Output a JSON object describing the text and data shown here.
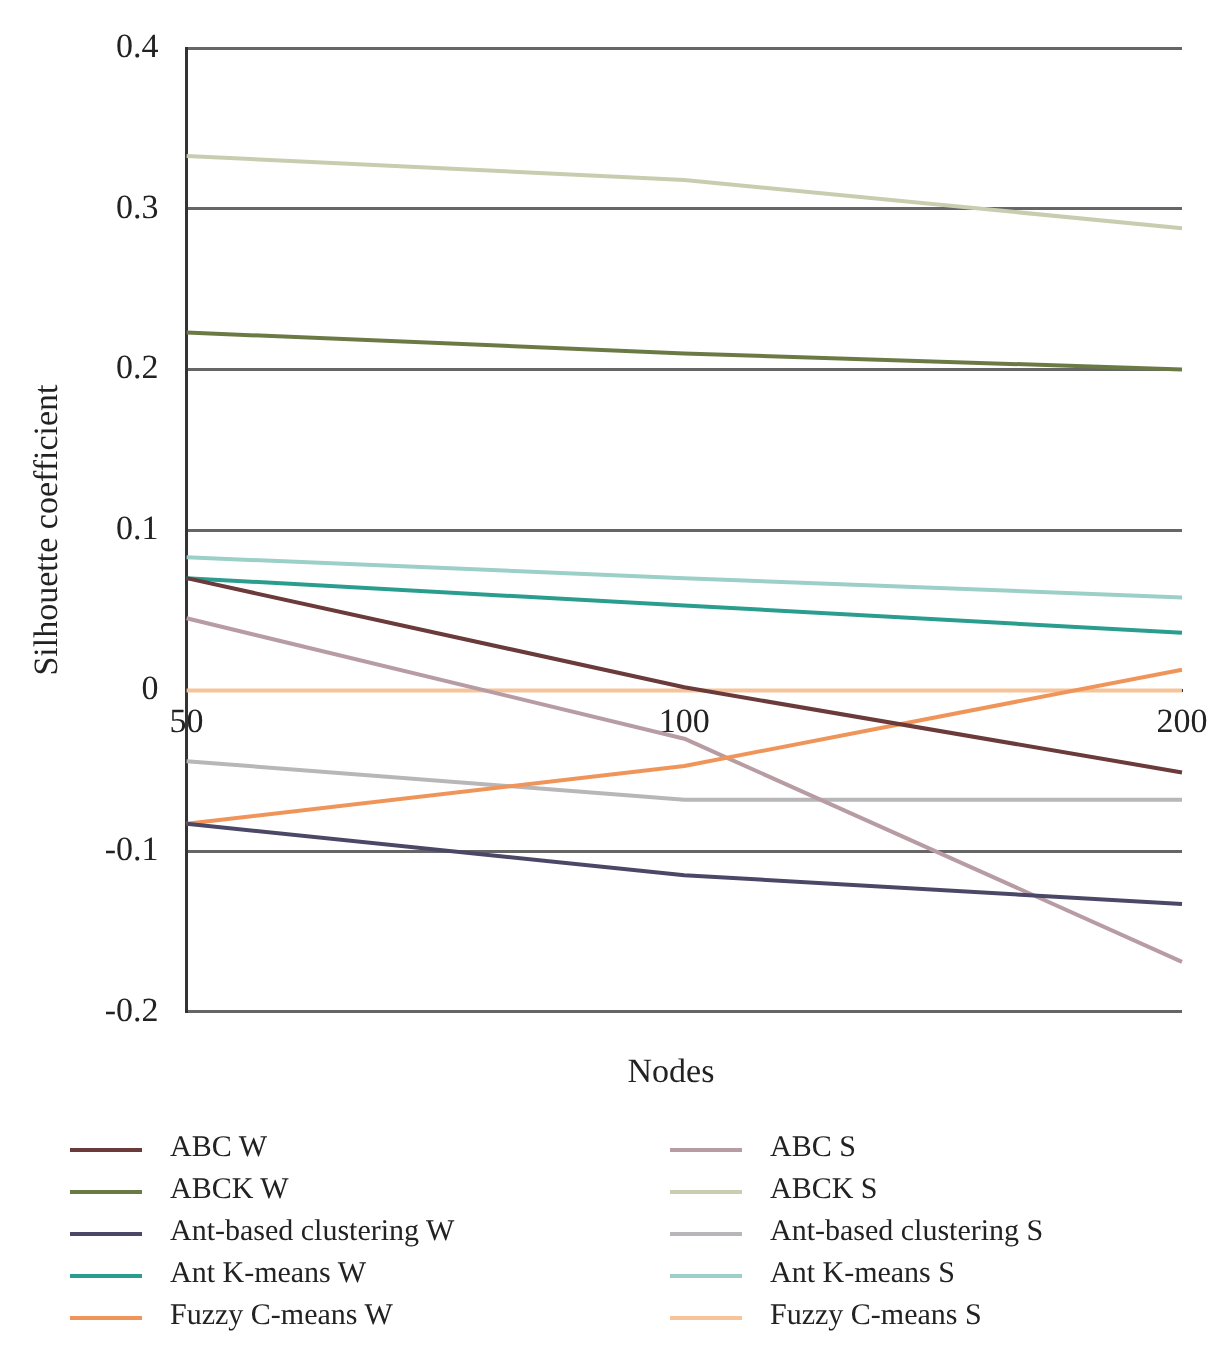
{
  "chart_data": {
    "type": "line",
    "xlabel": "Nodes",
    "ylabel": "Silhouette coefficient",
    "categories": [
      "50",
      "100",
      "200"
    ],
    "ylim": [
      -0.2,
      0.4
    ],
    "yticks": [
      -0.2,
      -0.1,
      0,
      0.1,
      0.2,
      0.3,
      0.4
    ],
    "grid": "y",
    "legend": "bottom",
    "marker": "none",
    "line_style": "solid",
    "series": [
      {
        "name": "ABC W",
        "color": "#6b3a3a",
        "values": [
          0.07,
          0.002,
          -0.051
        ]
      },
      {
        "name": "ABCK W",
        "color": "#6b7a45",
        "values": [
          0.223,
          0.21,
          0.2
        ]
      },
      {
        "name": "Ant-based clustering W",
        "color": "#4a4866",
        "values": [
          -0.083,
          -0.115,
          -0.133
        ]
      },
      {
        "name": "Ant K-means W",
        "color": "#2a9d8f",
        "values": [
          0.07,
          0.053,
          0.036
        ]
      },
      {
        "name": "Fuzzy C-means W",
        "color": "#f0955a",
        "values": [
          -0.083,
          -0.047,
          0.013
        ]
      },
      {
        "name": "ABC S",
        "color": "#b89ca3",
        "values": [
          0.045,
          -0.03,
          -0.169
        ]
      },
      {
        "name": "ABCK S",
        "color": "#c8cdb0",
        "values": [
          0.333,
          0.318,
          0.288
        ]
      },
      {
        "name": "Ant-based clustering S",
        "color": "#b8b6b8",
        "values": [
          -0.044,
          -0.068,
          -0.068
        ]
      },
      {
        "name": "Ant K-means S",
        "color": "#9ccfc8",
        "values": [
          0.083,
          0.07,
          0.058
        ]
      },
      {
        "name": "Fuzzy C-means S",
        "color": "#f7c49a",
        "values": [
          0,
          0,
          0
        ]
      }
    ]
  }
}
